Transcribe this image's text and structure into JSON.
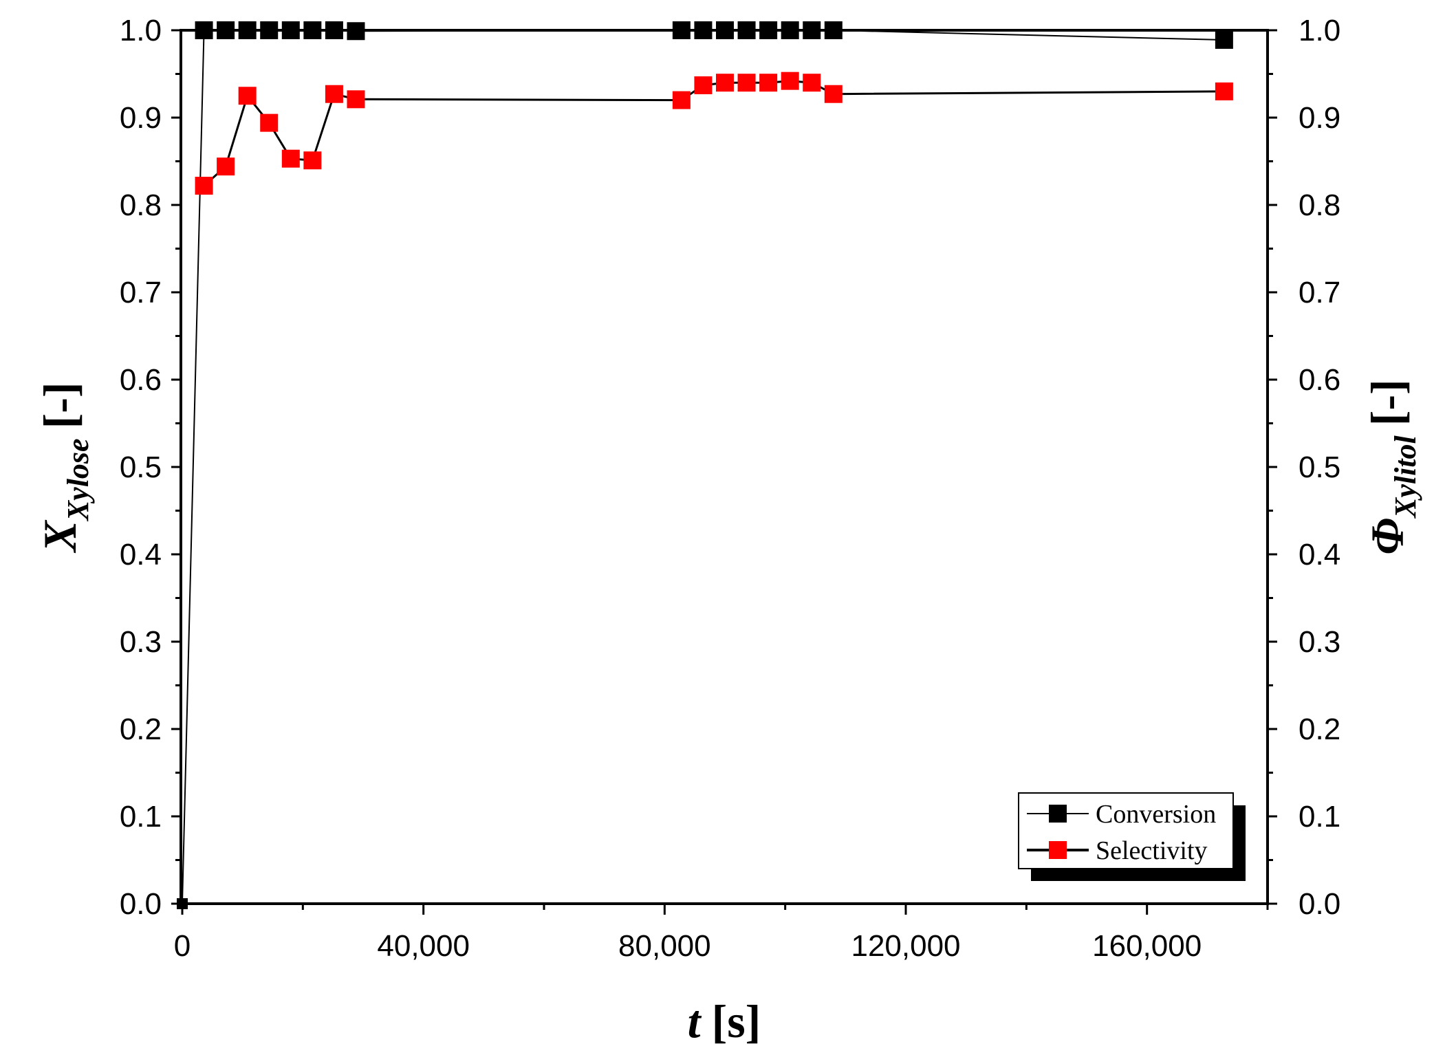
{
  "chart_data": {
    "type": "scatter",
    "xlabel": {
      "symbol": "t",
      "unit": "[s]"
    },
    "ylabel_left": {
      "symbol": "X",
      "subscript": "Xylose",
      "unit": "[-]"
    },
    "ylabel_right": {
      "symbol": "Φ",
      "subscript": "Xylitol",
      "unit": "[-]"
    },
    "xlim": [
      0,
      180000
    ],
    "ylim": [
      0.0,
      1.0
    ],
    "x_ticks": [
      {
        "value": 0,
        "label": "0"
      },
      {
        "value": 40000,
        "label": "40,000"
      },
      {
        "value": 80000,
        "label": "80,000"
      },
      {
        "value": 120000,
        "label": "120,000"
      },
      {
        "value": 160000,
        "label": "160,000"
      }
    ],
    "y_ticks": [
      {
        "value": 0.0,
        "label": "0.0"
      },
      {
        "value": 0.1,
        "label": "0.1"
      },
      {
        "value": 0.2,
        "label": "0.2"
      },
      {
        "value": 0.3,
        "label": "0.3"
      },
      {
        "value": 0.4,
        "label": "0.4"
      },
      {
        "value": 0.5,
        "label": "0.5"
      },
      {
        "value": 0.6,
        "label": "0.6"
      },
      {
        "value": 0.7,
        "label": "0.7"
      },
      {
        "value": 0.8,
        "label": "0.8"
      },
      {
        "value": 0.9,
        "label": "0.9"
      },
      {
        "value": 1.0,
        "label": "1.0"
      }
    ],
    "grid": false,
    "legend_position": "bottom-right",
    "series": [
      {
        "name": "Conversion",
        "color": "#000000",
        "x": [
          0,
          3600,
          7200,
          10800,
          14400,
          18000,
          21600,
          25200,
          28800,
          82800,
          86400,
          90000,
          93600,
          97200,
          100800,
          104400,
          108000,
          172800
        ],
        "values": [
          0.0,
          1.0,
          1.0,
          1.0,
          1.0,
          1.0,
          1.0,
          1.0,
          0.999,
          1.0,
          1.0,
          1.0,
          1.0,
          1.0,
          1.0,
          1.0,
          1.0,
          0.989
        ]
      },
      {
        "name": "Selectivity",
        "color": "#ff0000",
        "x": [
          3600,
          7200,
          10800,
          14400,
          18000,
          21600,
          25200,
          28800,
          82800,
          86400,
          90000,
          93600,
          97200,
          100800,
          104400,
          108000,
          172800
        ],
        "values": [
          0.822,
          0.844,
          0.925,
          0.894,
          0.853,
          0.851,
          0.927,
          0.921,
          0.92,
          0.937,
          0.94,
          0.94,
          0.94,
          0.942,
          0.94,
          0.927,
          0.93
        ]
      }
    ]
  }
}
